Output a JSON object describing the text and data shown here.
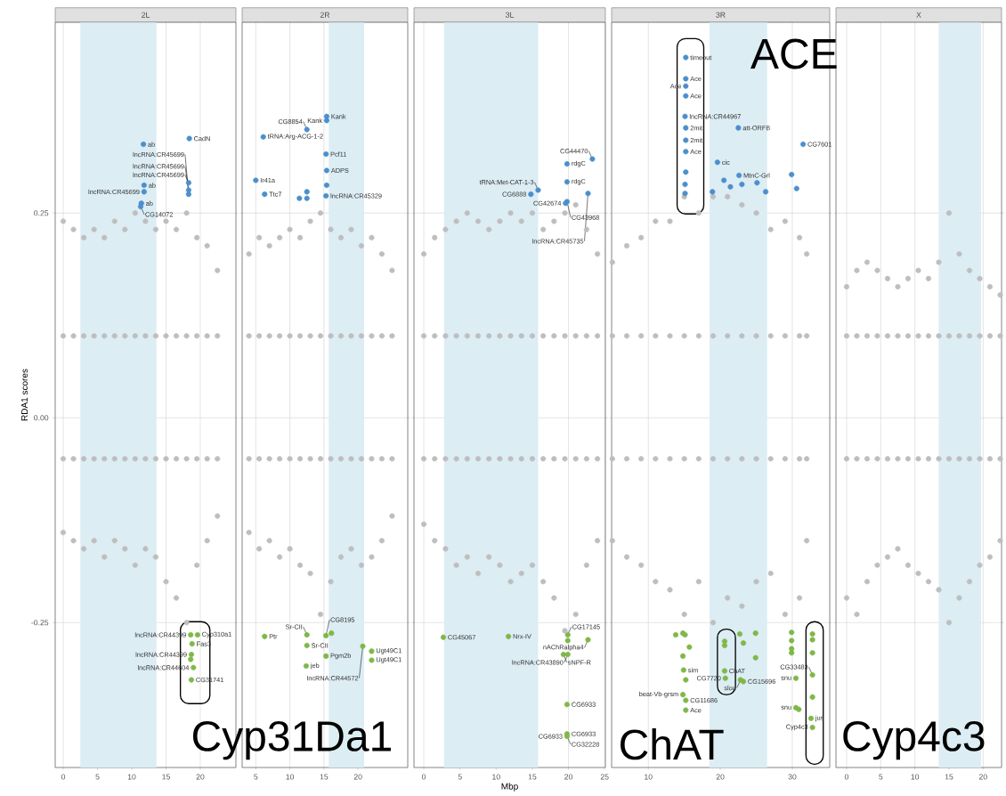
{
  "chart_data": [
    {
      "type": "scatter",
      "title": "2L",
      "ylabel": "RDA1 scores",
      "xlim": [
        -1.17,
        25.2
      ],
      "xticks": [
        0,
        5,
        10,
        15,
        20
      ],
      "ylim": [
        -0.427,
        0.483
      ],
      "yticks": [
        -0.25,
        {
          "value": 0,
          "label": "0.00"
        },
        0.25
      ],
      "grid": true,
      "bands": [
        {
          "axis": "x",
          "from": 2.5,
          "to": 13.6,
          "color": "#dcedf4"
        }
      ],
      "annotations": [
        {
          "text": "ab",
          "x": 11.7,
          "y": 0.334
        },
        {
          "text": "CadN",
          "x": 18.4,
          "y": 0.341
        },
        {
          "text": "ab",
          "x": 11.8,
          "y": 0.284
        },
        {
          "text": "lncRNA:CR45699",
          "x": 11.8,
          "y": 0.276
        },
        {
          "text": "ab",
          "x": 11.4,
          "y": 0.262
        },
        {
          "text": "CG14072",
          "x": 11.3,
          "y": 0.258
        },
        {
          "text": "lncRNA:CR45699",
          "x": 18.3,
          "y": 0.287
        },
        {
          "text": "lncRNA:CR45699",
          "x": 18.3,
          "y": 0.278
        },
        {
          "text": "lncRNA:CR45699",
          "x": 18.3,
          "y": 0.273
        },
        {
          "text": "lncRNA:CR44399",
          "x": 18.6,
          "y": -0.265
        },
        {
          "text": "Cyp310a1",
          "x": 19.6,
          "y": -0.265
        },
        {
          "text": "Fas3",
          "x": 18.8,
          "y": -0.276
        },
        {
          "text": "lncRNA:CR44399",
          "x": 18.7,
          "y": -0.289
        },
        {
          "text": "lncRNA:CR44604",
          "x": 19.0,
          "y": -0.305
        },
        {
          "text": "CG31741",
          "x": 18.7,
          "y": -0.32
        },
        "Cyp31Da1"
      ],
      "series": [
        {
          "color": "#bebebe",
          "x": [
            0,
            1.5,
            3,
            4.5,
            6,
            7.5,
            9,
            10.5,
            12,
            13.5,
            15,
            16.5,
            18,
            19.5,
            21,
            22.5,
            0,
            1.5,
            3,
            4.5,
            6,
            7.5,
            9,
            10.5,
            12,
            13.5,
            15,
            16.5,
            18,
            19.5,
            21,
            22.5,
            0,
            1.5,
            3,
            4.5,
            6,
            7.5,
            9,
            10.5,
            12,
            13.5,
            15,
            16.5,
            18,
            19.5,
            21,
            22.5,
            0,
            1.5,
            3,
            4.5,
            6,
            7.5,
            9,
            10.5,
            12,
            13.5,
            15,
            16.5,
            18,
            19.5,
            21,
            22.5
          ],
          "values": [
            0.24,
            0.23,
            0.22,
            0.23,
            0.22,
            0.24,
            0.23,
            0.25,
            0.24,
            0.23,
            0.24,
            0.23,
            0.25,
            0.22,
            0.21,
            0.18,
            0.1,
            0.1,
            0.1,
            0.1,
            0.1,
            0.1,
            0.1,
            0.1,
            0.1,
            0.1,
            0.1,
            0.1,
            0.1,
            0.1,
            0.1,
            0.1,
            -0.05,
            -0.05,
            -0.05,
            -0.05,
            -0.05,
            -0.05,
            -0.05,
            -0.05,
            -0.05,
            -0.05,
            -0.05,
            -0.05,
            -0.05,
            -0.05,
            -0.05,
            -0.05,
            -0.14,
            -0.15,
            -0.16,
            -0.15,
            -0.17,
            -0.15,
            -0.16,
            -0.18,
            -0.16,
            -0.17,
            -0.2,
            -0.22,
            -0.25,
            -0.18,
            -0.15,
            -0.12
          ]
        },
        {
          "color": "#4b8fcc",
          "x": [
            11.7,
            18.4,
            11.8,
            11.8,
            11.4,
            11.3,
            18.3,
            18.3,
            18.3
          ],
          "values": [
            0.334,
            0.341,
            0.284,
            0.276,
            0.262,
            0.258,
            0.287,
            0.278,
            0.273
          ]
        },
        {
          "color": "#7fb847",
          "x": [
            18.6,
            19.6,
            18.8,
            18.7,
            19.0,
            18.7,
            18.6
          ],
          "values": [
            -0.265,
            -0.265,
            -0.276,
            -0.289,
            -0.305,
            -0.32,
            -0.295
          ]
        }
      ]
    },
    {
      "type": "scatter",
      "title": "2R",
      "xlim": [
        3.0,
        27.3
      ],
      "xticks": [
        5,
        10,
        15,
        20
      ],
      "ylim": [
        -0.427,
        0.483
      ],
      "yticks": [
        -0.25,
        0,
        0.25
      ],
      "grid": true,
      "tick_labels": "x",
      "bands": [
        {
          "axis": "x",
          "from": 15.7,
          "to": 20.9,
          "color": "#dcedf4"
        }
      ],
      "annotations": [
        {
          "text": "tRNA:Arg-ACG-1-2",
          "x": 6.1,
          "y": 0.343
        },
        {
          "text": "CG8854",
          "x": 12.5,
          "y": 0.352
        },
        {
          "text": "Kank",
          "x": 15.4,
          "y": 0.368
        },
        {
          "text": "Kank",
          "x": 15.4,
          "y": 0.363
        },
        {
          "text": "Pcf11",
          "x": 15.3,
          "y": 0.322
        },
        {
          "text": "ADPS",
          "x": 15.4,
          "y": 0.302
        },
        {
          "text": "lncRNA:CR45329",
          "x": 15.3,
          "y": 0.271
        },
        {
          "text": "Ir41a",
          "x": 5.0,
          "y": 0.29
        },
        {
          "text": "Ttc7",
          "x": 6.3,
          "y": 0.273
        },
        {
          "text": "Ptr",
          "x": 6.3,
          "y": -0.267
        },
        {
          "text": "Sr-CII",
          "x": 12.5,
          "y": -0.265
        },
        {
          "text": "Sr-CII",
          "x": 12.5,
          "y": -0.278
        },
        {
          "text": "jeb",
          "x": 12.4,
          "y": -0.303
        },
        {
          "text": "CG8195",
          "x": 15.3,
          "y": -0.266
        },
        {
          "text": "Pgm2b",
          "x": 15.3,
          "y": -0.291
        },
        {
          "text": "lncRNA:CR44572",
          "x": 20.7,
          "y": -0.279
        },
        {
          "text": "Ugt49C1",
          "x": 22.0,
          "y": -0.285
        },
        {
          "text": "Ugt49C1",
          "x": 22.0,
          "y": -0.296
        }
      ],
      "series": [
        {
          "color": "#bebebe",
          "x": [
            4,
            5.5,
            7,
            8.5,
            10,
            11.5,
            13,
            14.5,
            16,
            17.5,
            19,
            20.5,
            22,
            23.5,
            25,
            4,
            5.5,
            7,
            8.5,
            10,
            11.5,
            13,
            14.5,
            16,
            17.5,
            19,
            20.5,
            22,
            23.5,
            25,
            4,
            5.5,
            7,
            8.5,
            10,
            11.5,
            13,
            14.5,
            16,
            17.5,
            19,
            20.5,
            22,
            23.5,
            25,
            4,
            5.5,
            7,
            8.5,
            10,
            11.5,
            13,
            14.5,
            16,
            17.5,
            19,
            20.5,
            22,
            23.5,
            25
          ],
          "values": [
            0.2,
            0.22,
            0.21,
            0.22,
            0.23,
            0.22,
            0.24,
            0.25,
            0.23,
            0.22,
            0.23,
            0.21,
            0.22,
            0.2,
            0.18,
            0.1,
            0.1,
            0.1,
            0.1,
            0.1,
            0.1,
            0.1,
            0.1,
            0.1,
            0.1,
            0.1,
            0.1,
            0.1,
            0.1,
            0.1,
            -0.05,
            -0.05,
            -0.05,
            -0.05,
            -0.05,
            -0.05,
            -0.05,
            -0.05,
            -0.05,
            -0.05,
            -0.05,
            -0.05,
            -0.05,
            -0.05,
            -0.05,
            -0.14,
            -0.16,
            -0.15,
            -0.17,
            -0.16,
            -0.18,
            -0.19,
            -0.24,
            -0.2,
            -0.17,
            -0.16,
            -0.18,
            -0.17,
            -0.15,
            -0.12
          ]
        },
        {
          "color": "#4b8fcc",
          "x": [
            6.1,
            12.5,
            15.4,
            15.4,
            15.3,
            15.4,
            15.3,
            5.0,
            6.3,
            11.4,
            12.5,
            12.5,
            15.4
          ],
          "values": [
            0.343,
            0.352,
            0.368,
            0.363,
            0.322,
            0.302,
            0.271,
            0.29,
            0.273,
            0.268,
            0.276,
            0.268,
            0.284
          ]
        },
        {
          "color": "#7fb847",
          "x": [
            6.3,
            12.5,
            12.5,
            12.4,
            15.3,
            16.1,
            15.3,
            20.7,
            22.0,
            22.0
          ],
          "values": [
            -0.267,
            -0.265,
            -0.278,
            -0.303,
            -0.266,
            -0.263,
            -0.291,
            -0.279,
            -0.285,
            -0.296
          ]
        }
      ]
    },
    {
      "type": "scatter",
      "title": "3L",
      "xlabel": "Mbp",
      "xlim": [
        -1.36,
        25.1
      ],
      "xticks": [
        0,
        5,
        10,
        15,
        20,
        25
      ],
      "ylim": [
        -0.427,
        0.483
      ],
      "yticks": [
        -0.25,
        0,
        0.25
      ],
      "grid": true,
      "tick_labels": "x",
      "bands": [
        {
          "axis": "x",
          "from": 2.8,
          "to": 15.8,
          "color": "#dcedf4"
        }
      ],
      "annotations": [
        {
          "text": "CG6888",
          "x": 14.8,
          "y": 0.273
        },
        {
          "text": "tRNA:Met-CAT-1-3",
          "x": 15.8,
          "y": 0.278
        },
        {
          "text": "rdgC",
          "x": 19.8,
          "y": 0.31
        },
        {
          "text": "rdgC",
          "x": 19.8,
          "y": 0.288
        },
        {
          "text": "CG43968",
          "x": 19.8,
          "y": 0.264
        },
        {
          "text": "CG42674",
          "x": 19.6,
          "y": 0.262
        },
        {
          "text": "CG44470",
          "x": 23.3,
          "y": 0.316
        },
        {
          "text": "lncRNA:CR45735",
          "x": 22.7,
          "y": 0.274
        },
        {
          "text": "CG45067",
          "x": 2.7,
          "y": -0.268
        },
        {
          "text": "Nrx-IV",
          "x": 11.7,
          "y": -0.267
        },
        {
          "text": "CG17145",
          "x": 19.9,
          "y": -0.265
        },
        {
          "text": "nAChRalpha4",
          "x": 22.7,
          "y": -0.271
        },
        {
          "text": "sNPF-R",
          "x": 19.3,
          "y": -0.289
        },
        {
          "text": "lncRNA:CR43890",
          "x": 19.9,
          "y": -0.289
        },
        {
          "text": "CG6933",
          "x": 19.8,
          "y": -0.35
        },
        {
          "text": "CG6933",
          "x": 19.8,
          "y": -0.386
        },
        {
          "text": "CG6933",
          "x": 19.8,
          "y": -0.389
        },
        {
          "text": "CG32228",
          "x": 19.8,
          "y": -0.389
        }
      ],
      "series": [
        {
          "color": "#bebebe",
          "x": [
            0,
            1.5,
            3,
            4.5,
            6,
            7.5,
            9,
            10.5,
            12,
            13.5,
            15,
            16.5,
            18,
            19.5,
            21,
            22.5,
            24,
            0,
            1.5,
            3,
            4.5,
            6,
            7.5,
            9,
            10.5,
            12,
            13.5,
            15,
            16.5,
            18,
            19.5,
            21,
            22.5,
            24,
            0,
            1.5,
            3,
            4.5,
            6,
            7.5,
            9,
            10.5,
            12,
            13.5,
            15,
            16.5,
            18,
            19.5,
            21,
            22.5,
            24,
            0,
            1.5,
            3,
            4.5,
            6,
            7.5,
            9,
            10.5,
            12,
            13.5,
            15,
            16.5,
            18,
            19.5,
            21,
            22.5,
            24
          ],
          "values": [
            0.2,
            0.22,
            0.23,
            0.24,
            0.25,
            0.24,
            0.23,
            0.24,
            0.25,
            0.24,
            0.25,
            0.23,
            0.24,
            0.25,
            0.26,
            0.23,
            0.2,
            0.1,
            0.1,
            0.1,
            0.1,
            0.1,
            0.1,
            0.1,
            0.1,
            0.1,
            0.1,
            0.1,
            0.1,
            0.1,
            0.1,
            0.1,
            0.1,
            0.1,
            -0.05,
            -0.05,
            -0.05,
            -0.05,
            -0.05,
            -0.05,
            -0.05,
            -0.05,
            -0.05,
            -0.05,
            -0.05,
            -0.05,
            -0.05,
            -0.05,
            -0.05,
            -0.05,
            -0.05,
            -0.13,
            -0.15,
            -0.16,
            -0.18,
            -0.17,
            -0.19,
            -0.17,
            -0.18,
            -0.2,
            -0.19,
            -0.18,
            -0.2,
            -0.22,
            -0.26,
            -0.24,
            -0.18,
            -0.15
          ]
        },
        {
          "color": "#4b8fcc",
          "x": [
            14.8,
            15.8,
            19.8,
            19.8,
            19.8,
            19.6,
            23.3,
            22.7
          ],
          "values": [
            0.273,
            0.278,
            0.31,
            0.288,
            0.264,
            0.262,
            0.316,
            0.274
          ]
        },
        {
          "color": "#7fb847",
          "x": [
            2.7,
            11.7,
            19.9,
            22.7,
            19.3,
            19.9,
            19.9,
            19.8,
            19.8,
            19.8
          ],
          "values": [
            -0.268,
            -0.267,
            -0.265,
            -0.271,
            -0.289,
            -0.289,
            -0.272,
            -0.35,
            -0.386,
            -0.389
          ]
        }
      ]
    },
    {
      "type": "scatter",
      "title": "3R",
      "xlim": [
        4.9,
        35.2
      ],
      "xticks": [
        10,
        20,
        30
      ],
      "ylim": [
        -0.427,
        0.483
      ],
      "yticks": [
        -0.25,
        0,
        0.25
      ],
      "grid": true,
      "tick_labels": "x",
      "bands": [
        {
          "axis": "x",
          "from": 18.5,
          "to": 26.5,
          "color": "#dcedf4"
        }
      ],
      "annotations": [
        {
          "text": "timeout",
          "x": 15.2,
          "y": 0.44
        },
        {
          "text": "Ace",
          "x": 15.2,
          "y": 0.414
        },
        {
          "text": "Ace",
          "x": 15.2,
          "y": 0.405
        },
        {
          "text": "Ace",
          "x": 15.2,
          "y": 0.393
        },
        {
          "text": "lncRNA:CR44967",
          "x": 15.1,
          "y": 0.368
        },
        {
          "text": "2mit",
          "x": 15.2,
          "y": 0.354
        },
        {
          "text": "2mit",
          "x": 15.2,
          "y": 0.339
        },
        {
          "text": "Ace",
          "x": 15.2,
          "y": 0.325
        },
        {
          "text": "att-ORFB",
          "x": 22.5,
          "y": 0.354
        },
        {
          "text": "cic",
          "x": 19.6,
          "y": 0.312
        },
        {
          "text": "MtnC-Grl",
          "x": 22.6,
          "y": 0.296
        },
        {
          "text": "CG7601",
          "x": 31.5,
          "y": 0.334
        },
        {
          "text": "sim",
          "x": 14.9,
          "y": -0.308
        },
        {
          "text": "beat-Vb-grsm",
          "x": 14.8,
          "y": -0.338
        },
        {
          "text": "CG11686",
          "x": 15.2,
          "y": -0.345
        },
        {
          "text": "Ace",
          "x": 15.2,
          "y": -0.357
        },
        {
          "text": "ChAT",
          "x": 20.6,
          "y": -0.309
        },
        {
          "text": "CG7720",
          "x": 20.7,
          "y": -0.318
        },
        {
          "text": "slou",
          "x": 22.8,
          "y": -0.32
        },
        {
          "text": "CG15696",
          "x": 23.2,
          "y": -0.322
        },
        {
          "text": "snu",
          "x": 30.5,
          "y": -0.318
        },
        {
          "text": "snu",
          "x": 30.5,
          "y": -0.354
        },
        {
          "text": "CG33483",
          "x": 32.8,
          "y": -0.314
        },
        {
          "text": "jus",
          "x": 32.6,
          "y": -0.367
        },
        {
          "text": "Cyp4c3",
          "x": 32.8,
          "y": -0.378
        },
        "ChAT",
        "ACE"
      ],
      "series": [
        {
          "color": "#bebebe",
          "x": [
            5,
            7,
            9,
            11,
            13,
            15,
            17,
            19,
            21,
            23,
            25,
            27,
            29,
            31,
            32,
            5,
            7,
            9,
            11,
            13,
            15,
            17,
            19,
            21,
            23,
            25,
            27,
            29,
            31,
            32,
            5,
            7,
            9,
            11,
            13,
            15,
            17,
            19,
            21,
            23,
            25,
            27,
            29,
            31,
            32,
            5,
            7,
            9,
            11,
            13,
            15,
            17,
            19,
            21,
            23,
            25,
            27,
            29,
            31,
            32
          ],
          "values": [
            0.19,
            0.21,
            0.22,
            0.24,
            0.24,
            0.27,
            0.25,
            0.27,
            0.27,
            0.26,
            0.25,
            0.23,
            0.24,
            0.22,
            0.2,
            0.1,
            0.1,
            0.1,
            0.1,
            0.1,
            0.1,
            0.1,
            0.1,
            0.1,
            0.1,
            0.1,
            0.1,
            0.1,
            0.1,
            0.1,
            -0.05,
            -0.05,
            -0.05,
            -0.05,
            -0.05,
            -0.05,
            -0.05,
            -0.05,
            -0.05,
            -0.05,
            -0.05,
            -0.05,
            -0.05,
            -0.05,
            -0.05,
            -0.15,
            -0.17,
            -0.18,
            -0.2,
            -0.21,
            -0.24,
            -0.2,
            -0.25,
            -0.22,
            -0.23,
            -0.2,
            -0.19,
            -0.24,
            -0.22,
            -0.15
          ]
        },
        {
          "color": "#4b8fcc",
          "x": [
            15.2,
            15.2,
            15.2,
            15.2,
            15.1,
            15.2,
            15.2,
            15.2,
            15.2,
            15.1,
            15.1,
            22.5,
            19.6,
            22.6,
            31.5,
            29.9,
            30.6,
            21.4,
            18.9,
            25.1,
            26.3,
            20.5,
            23.0
          ],
          "values": [
            0.44,
            0.414,
            0.405,
            0.393,
            0.368,
            0.354,
            0.339,
            0.325,
            0.3,
            0.285,
            0.274,
            0.354,
            0.312,
            0.296,
            0.334,
            0.297,
            0.28,
            0.282,
            0.276,
            0.287,
            0.276,
            0.29,
            0.285
          ]
        },
        {
          "color": "#7fb847",
          "x": [
            13.8,
            14.8,
            15.1,
            15.7,
            14.8,
            14.9,
            15.2,
            14.8,
            15.2,
            15.2,
            20.6,
            20.6,
            20.6,
            20.7,
            22.7,
            23.2,
            24.9,
            24.9,
            22.8,
            23.2,
            29.9,
            29.9,
            29.9,
            29.9,
            30.5,
            30.5,
            30.9,
            32.8,
            32.8,
            32.8,
            32.8,
            32.8,
            32.6,
            32.8
          ],
          "values": [
            -0.265,
            -0.263,
            -0.265,
            -0.28,
            -0.291,
            -0.308,
            -0.32,
            -0.338,
            -0.345,
            -0.357,
            -0.273,
            -0.278,
            -0.309,
            -0.318,
            -0.264,
            -0.275,
            -0.263,
            -0.293,
            -0.32,
            -0.322,
            -0.262,
            -0.272,
            -0.282,
            -0.287,
            -0.318,
            -0.354,
            -0.356,
            -0.264,
            -0.271,
            -0.287,
            -0.314,
            -0.341,
            -0.367,
            -0.378
          ]
        }
      ]
    },
    {
      "type": "scatter",
      "title": "X",
      "xlim": [
        -1.56,
        22.7
      ],
      "xticks": [
        0,
        5,
        10,
        15,
        20
      ],
      "ylim": [
        -0.427,
        0.483
      ],
      "yticks": [
        -0.25,
        0,
        0.25
      ],
      "grid": true,
      "tick_labels": "x",
      "bands": [
        {
          "axis": "x",
          "from": 13.5,
          "to": 19.7,
          "color": "#dcedf4"
        }
      ],
      "annotations": [
        "Cyp4c3"
      ],
      "series": [
        {
          "color": "#bebebe",
          "x": [
            0,
            1.5,
            3,
            4.5,
            6,
            7.5,
            9,
            10.5,
            12,
            13.5,
            15,
            16.5,
            18,
            19.5,
            21,
            22.5,
            0,
            1.5,
            3,
            4.5,
            6,
            7.5,
            9,
            10.5,
            12,
            13.5,
            15,
            16.5,
            18,
            19.5,
            21,
            22.5,
            0,
            1.5,
            3,
            4.5,
            6,
            7.5,
            9,
            10.5,
            12,
            13.5,
            15,
            16.5,
            18,
            19.5,
            21,
            22.5,
            0,
            1.5,
            3,
            4.5,
            6,
            7.5,
            9,
            10.5,
            12,
            13.5,
            15,
            16.5,
            18,
            19.5,
            21,
            22.5
          ],
          "values": [
            0.16,
            0.18,
            0.19,
            0.18,
            0.17,
            0.16,
            0.17,
            0.18,
            0.17,
            0.19,
            0.25,
            0.2,
            0.18,
            0.17,
            0.16,
            0.15,
            0.1,
            0.1,
            0.1,
            0.1,
            0.1,
            0.1,
            0.1,
            0.1,
            0.1,
            0.1,
            0.1,
            0.1,
            0.1,
            0.1,
            0.1,
            0.1,
            -0.05,
            -0.05,
            -0.05,
            -0.05,
            -0.05,
            -0.05,
            -0.05,
            -0.05,
            -0.05,
            -0.05,
            -0.05,
            -0.05,
            -0.05,
            -0.05,
            -0.05,
            -0.05,
            -0.22,
            -0.24,
            -0.2,
            -0.18,
            -0.17,
            -0.16,
            -0.18,
            -0.19,
            -0.2,
            -0.21,
            -0.25,
            -0.22,
            -0.2,
            -0.18,
            -0.17,
            -0.15
          ]
        }
      ]
    }
  ]
}
